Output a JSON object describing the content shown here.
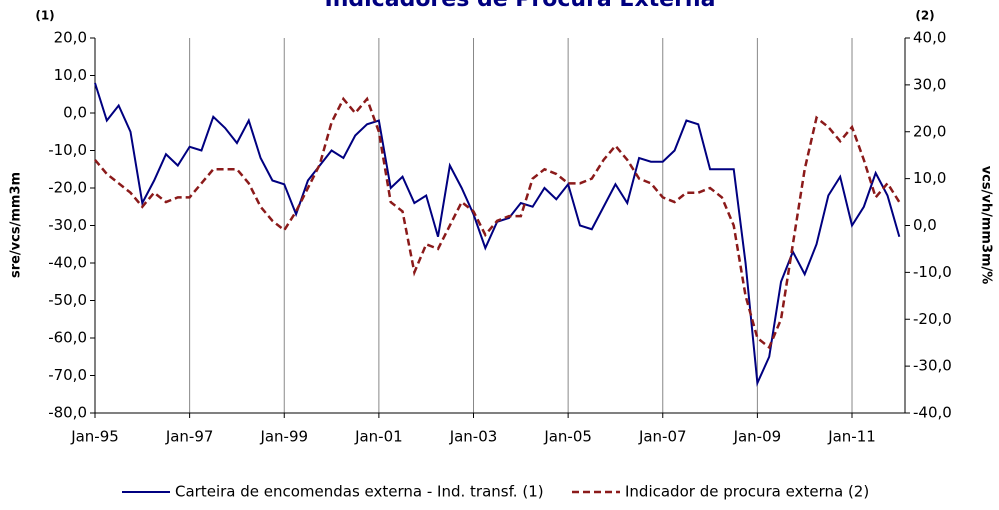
{
  "chart_data": {
    "type": "line",
    "title": "Indicadores de Procura Externa",
    "y_label": "sre/vcs/mm3m",
    "y2_label": "vcs/vh/mm3m/%",
    "y_note": "(1)",
    "y2_note": "(2)",
    "x": [
      1995,
      1995.25,
      1995.5,
      1995.75,
      1996,
      1996.25,
      1996.5,
      1996.75,
      1997,
      1997.25,
      1997.5,
      1997.75,
      1998,
      1998.25,
      1998.5,
      1998.75,
      1999,
      1999.25,
      1999.5,
      1999.75,
      2000,
      2000.25,
      2000.5,
      2000.75,
      2001,
      2001.25,
      2001.5,
      2001.75,
      2002,
      2002.25,
      2002.5,
      2002.75,
      2003,
      2003.25,
      2003.5,
      2003.75,
      2004,
      2004.25,
      2004.5,
      2004.75,
      2005,
      2005.25,
      2005.5,
      2005.75,
      2006,
      2006.25,
      2006.5,
      2006.75,
      2007,
      2007.25,
      2007.5,
      2007.75,
      2008,
      2008.25,
      2008.5,
      2008.75,
      2009,
      2009.25,
      2009.5,
      2009.75,
      2010,
      2010.25,
      2010.5,
      2010.75,
      2011,
      2011.25,
      2011.5,
      2011.75,
      2012
    ],
    "xlim": [
      1995,
      2012.12
    ],
    "xticks": [
      {
        "value": 1995,
        "label": "Jan-95"
      },
      {
        "value": 1997,
        "label": "Jan-97"
      },
      {
        "value": 1999,
        "label": "Jan-99"
      },
      {
        "value": 2001,
        "label": "Jan-01"
      },
      {
        "value": 2003,
        "label": "Jan-03"
      },
      {
        "value": 2005,
        "label": "Jan-05"
      },
      {
        "value": 2007,
        "label": "Jan-07"
      },
      {
        "value": 2009,
        "label": "Jan-09"
      },
      {
        "value": 2011,
        "label": "Jan-11"
      }
    ],
    "ylim": [
      -80,
      20
    ],
    "yticks": [
      {
        "value": -80,
        "label": "-80,0"
      },
      {
        "value": -70,
        "label": "-70,0"
      },
      {
        "value": -60,
        "label": "-60,0"
      },
      {
        "value": -50,
        "label": "-50,0"
      },
      {
        "value": -40,
        "label": "-40,0"
      },
      {
        "value": -30,
        "label": "-30,0"
      },
      {
        "value": -20,
        "label": "-20,0"
      },
      {
        "value": -10,
        "label": "-10,0"
      },
      {
        "value": 0,
        "label": "0,0"
      },
      {
        "value": 10,
        "label": "10,0"
      },
      {
        "value": 20,
        "label": "20,0"
      }
    ],
    "y2lim": [
      -40,
      40
    ],
    "y2ticks": [
      {
        "value": -40,
        "label": "-40,0"
      },
      {
        "value": -30,
        "label": "-30,0"
      },
      {
        "value": -20,
        "label": "-20,0"
      },
      {
        "value": -10,
        "label": "-10,0"
      },
      {
        "value": 0,
        "label": "0,0"
      },
      {
        "value": 10,
        "label": "10,0"
      },
      {
        "value": 20,
        "label": "20,0"
      },
      {
        "value": 30,
        "label": "30,0"
      },
      {
        "value": 40,
        "label": "40,0"
      }
    ],
    "grid": "x",
    "series": [
      {
        "name": "Carteira de encomendas externa - Ind. transf. (1)",
        "color": "#000080",
        "dash": false,
        "axis": "y",
        "values": [
          8,
          -2,
          2,
          -5,
          -24,
          -18,
          -11,
          -14,
          -9,
          -10,
          -1,
          -4,
          -8,
          -2,
          -12,
          -18,
          -19,
          -27,
          -18,
          -14,
          -10,
          -12,
          -6,
          -3,
          -2,
          -20,
          -17,
          -24,
          -22,
          -33,
          -14,
          -20,
          -27,
          -36,
          -29,
          -28,
          -24,
          -25,
          -20,
          -23,
          -19,
          -30,
          -31,
          -25,
          -19,
          -24,
          -12,
          -13,
          -13,
          -10,
          -2,
          -3,
          -15,
          -15,
          -15,
          -40,
          -72,
          -65,
          -45,
          -37,
          -43,
          -35,
          -22,
          -17,
          -30,
          -25,
          -16,
          -22,
          -33
        ]
      },
      {
        "name": "Indicador de procura externa (2)",
        "color": "#8b1a1a",
        "dash": true,
        "axis": "y2",
        "values": [
          14,
          11,
          9,
          7,
          4,
          7,
          5,
          6,
          6,
          9,
          12,
          12,
          12,
          9,
          4,
          1,
          -1,
          3,
          8,
          13,
          22,
          27,
          24,
          27,
          20,
          5,
          3,
          -10,
          -4,
          -5,
          0,
          5,
          3,
          -2,
          1,
          2,
          2,
          10,
          12,
          11,
          9,
          9,
          10,
          14,
          17,
          14,
          10,
          9,
          6,
          5,
          7,
          7,
          8,
          6,
          0,
          -15,
          -24,
          -26,
          -20,
          -4,
          12,
          23,
          21,
          18,
          21,
          14,
          6,
          9,
          5
        ]
      }
    ]
  }
}
